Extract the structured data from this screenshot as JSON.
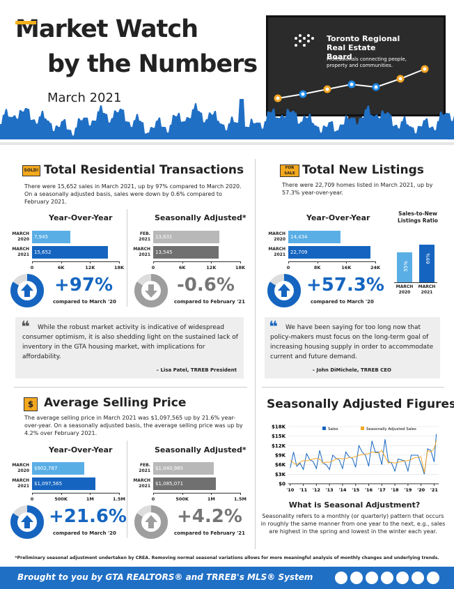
{
  "header": {
    "title_line1": "Market Watch",
    "title_line2": "by the Numbers",
    "date": "March 2021",
    "logo_name": "Toronto Regional Real Estate Board",
    "logo_tagline": "Professionals connecting people, property and communities."
  },
  "transactions": {
    "icon": "SOLD!",
    "title": "Total Residential Transactions",
    "description": "There were 15,652 sales in March 2021, up by 97% compared to March 2020. On a seasonally adjusted basis, sales were down by 0.6% compared to February 2021.",
    "yoy": {
      "title": "Year-Over-Year",
      "categories": [
        "MARCH\n2020",
        "MARCH\n2021"
      ],
      "values": [
        7945,
        15652
      ],
      "value_labels": [
        "7,945",
        "15,652"
      ],
      "colors": [
        "#5aaee6",
        "#1565c0"
      ],
      "xlim": [
        0,
        18000
      ],
      "xticks": [
        0,
        {
          "value": 6000,
          "label": "6K"
        },
        {
          "value": 12000,
          "label": "12K"
        },
        {
          "value": 18000,
          "label": "18K"
        }
      ],
      "change": "+97%",
      "caption": "compared to March '20"
    },
    "seasonal": {
      "title": "Seasonally Adjusted*",
      "categories": [
        "FEB.\n2021",
        "MARCH\n2021"
      ],
      "values": [
        13631,
        13545
      ],
      "value_labels": [
        "13,631",
        "13,545"
      ],
      "colors": [
        "#b8b8b8",
        "#707070"
      ],
      "xlim": [
        0,
        18000
      ],
      "xticks": [
        0,
        {
          "value": 6000,
          "label": "6K"
        },
        {
          "value": 12000,
          "label": "12K"
        },
        {
          "value": 18000,
          "label": "18K"
        }
      ],
      "change": "-0.6%",
      "caption": "compared to February '21"
    }
  },
  "listings": {
    "icon": "FOR SALE",
    "title": "Total New Listings",
    "description": "There were 22,709 homes listed in March 2021, up by 57.3% year-over-year.",
    "yoy": {
      "title": "Year-Over-Year",
      "categories": [
        "MARCH\n2020",
        "MARCH\n2021"
      ],
      "values": [
        14434,
        22709
      ],
      "value_labels": [
        "14,434",
        "22,709"
      ],
      "colors": [
        "#5aaee6",
        "#1565c0"
      ],
      "xlim": [
        0,
        24000
      ],
      "xticks": [
        0,
        {
          "value": 8000,
          "label": "8K"
        },
        {
          "value": 16000,
          "label": "16K"
        },
        {
          "value": 24000,
          "label": "24K"
        }
      ],
      "change": "+57.3%",
      "caption": "compared to March '20"
    },
    "ratio": {
      "title": "Sales-to-New Listings Ratio",
      "categories": [
        "MARCH\n2020",
        "MARCH\n2021"
      ],
      "values": [
        55,
        69
      ],
      "value_labels": [
        "55%",
        "69%"
      ],
      "colors": [
        "#5aaee6",
        "#1565c0"
      ],
      "ylim": [
        0,
        100
      ]
    }
  },
  "quotes": [
    {
      "text": "While the robust market activity is indicative of widespread consumer optimism, it is also shedding light on the sustained lack of inventory in the GTA housing market, with implications for affordability.",
      "author": "– Lisa Patel, TRREB President"
    },
    {
      "text": "We have been saying for too long now that policy-makers must focus on the long-term goal of increasing housing supply in order to accommodate current and future demand.",
      "author": "– John DiMichele, TRREB CEO"
    }
  ],
  "price": {
    "icon": "$",
    "title": "Average Selling Price",
    "description": "The average selling price in March 2021 was $1,097,565 up by 21.6% year-over-year. On a seasonally adjusted basis, the average selling price was up by 4.2% over February 2021.",
    "yoy": {
      "title": "Year-Over-Year",
      "categories": [
        "MARCH\n2020",
        "MARCH\n2021"
      ],
      "values": [
        902787,
        1097565
      ],
      "value_labels": [
        "$902,787",
        "$1,097,565"
      ],
      "colors": [
        "#5aaee6",
        "#1565c0"
      ],
      "xlim": [
        0,
        1500000
      ],
      "xticks": [
        0,
        {
          "value": 500000,
          "label": "500K"
        },
        {
          "value": 1000000,
          "label": "1M"
        },
        {
          "value": 1500000,
          "label": "1.5M"
        }
      ],
      "change": "+21.6%",
      "caption": "compared to March '20"
    },
    "seasonal": {
      "title": "Seasonally Adjusted*",
      "categories": [
        "FEB.\n2021",
        "MARCH\n2021"
      ],
      "values": [
        1040985,
        1085071
      ],
      "value_labels": [
        "$1,040,985",
        "$1,085,071"
      ],
      "colors": [
        "#b8b8b8",
        "#707070"
      ],
      "xlim": [
        0,
        1500000
      ],
      "xticks": [
        0,
        {
          "value": 500000,
          "label": "500K"
        },
        {
          "value": 1000000,
          "label": "1M"
        },
        {
          "value": 1500000,
          "label": "1.5M"
        }
      ],
      "change": "+4.2%",
      "caption": "compared to February '21"
    }
  },
  "seasonal_figures": {
    "title": "Seasonally Adjusted Figures",
    "chart_data": {
      "type": "line",
      "x": [
        2010,
        2010.25,
        2010.5,
        2010.75,
        2011,
        2011.25,
        2011.5,
        2011.75,
        2012,
        2012.25,
        2012.5,
        2012.75,
        2013,
        2013.25,
        2013.5,
        2013.75,
        2014,
        2014.25,
        2014.5,
        2014.75,
        2015,
        2015.25,
        2015.5,
        2015.75,
        2016,
        2016.25,
        2016.5,
        2016.75,
        2017,
        2017.25,
        2017.5,
        2017.75,
        2018,
        2018.25,
        2018.5,
        2018.75,
        2019,
        2019.25,
        2019.5,
        2019.75,
        2020,
        2020.25,
        2020.5,
        2020.75,
        2021,
        2021.17
      ],
      "series": [
        {
          "name": "Sales",
          "color": "#1565c0",
          "values": [
            5000,
            10000,
            5500,
            6500,
            4500,
            9500,
            7500,
            7000,
            4800,
            10500,
            6500,
            6000,
            4500,
            9000,
            8000,
            7500,
            4800,
            10000,
            8500,
            8000,
            5200,
            12000,
            10000,
            9000,
            5500,
            13500,
            10000,
            10000,
            6000,
            14000,
            7000,
            6500,
            4000,
            7800,
            7500,
            7200,
            4000,
            9000,
            9000,
            9000,
            6300,
            3000,
            11000,
            10500,
            6900,
            15652
          ]
        },
        {
          "name": "Seasonally Adjusted Sales",
          "color": "#f5a623",
          "values": [
            7500,
            6500,
            6000,
            6800,
            7300,
            7200,
            7500,
            7800,
            8000,
            7800,
            6500,
            6800,
            6800,
            7200,
            7800,
            8000,
            7800,
            8000,
            8200,
            8300,
            8500,
            9000,
            9200,
            9300,
            9500,
            10000,
            9800,
            9700,
            10500,
            8500,
            6500,
            6800,
            6500,
            6800,
            7000,
            7200,
            7300,
            7600,
            8200,
            8300,
            8500,
            3500,
            10500,
            10000,
            11000,
            13545
          ]
        }
      ],
      "xlim": [
        2009.85,
        2021.35
      ],
      "xticks": [
        {
          "value": 2010,
          "label": "'10"
        },
        {
          "value": 2011,
          "label": "'11"
        },
        {
          "value": 2012,
          "label": "'12"
        },
        {
          "value": 2013,
          "label": "'13"
        },
        {
          "value": 2014,
          "label": "'14"
        },
        {
          "value": 2015,
          "label": "'15"
        },
        {
          "value": 2016,
          "label": "'16"
        },
        {
          "value": 2017,
          "label": "'17"
        },
        {
          "value": 2018,
          "label": "'18"
        },
        {
          "value": 2019,
          "label": "'19"
        },
        {
          "value": 2020,
          "label": "'20"
        },
        {
          "value": 2021,
          "label": "'21"
        }
      ],
      "ylim": [
        0,
        18000
      ],
      "yticks": [
        {
          "value": 0,
          "label": "$0"
        },
        {
          "value": 3000,
          "label": "$3K"
        },
        {
          "value": 6000,
          "label": "$6K"
        },
        {
          "value": 9000,
          "label": "$9K"
        },
        {
          "value": 12000,
          "label": "$12K"
        },
        {
          "value": 15000,
          "label": "$15K"
        },
        {
          "value": 18000,
          "label": "$18K"
        }
      ],
      "grid": true
    },
    "question": "What is Seasonal Adjustment?",
    "explanation": "Seasonality refers to a monthly (or quarterly) pattern that occurs in roughly the same manner from one year to the next, e.g., sales are highest in the spring and lowest in the winter each year."
  },
  "footnote": "*Preliminary seasonal adjustment undertaken by CREA. Removing normal seasonal variations allows for more meaningful analysis of monthly changes and underlying trends.",
  "footer": "Brought to you by GTA REALTORS® and TRREB's MLS® System"
}
